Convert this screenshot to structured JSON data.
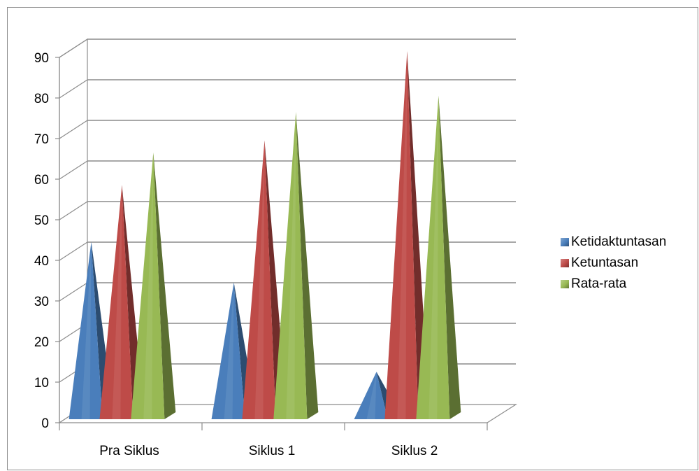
{
  "chart_data": {
    "type": "bar",
    "style": "3d-pyramid",
    "categories": [
      "Pra Siklus",
      "Siklus 1",
      "Siklus 2"
    ],
    "series": [
      {
        "name": "Ketidaktuntasan",
        "values": [
          43,
          33,
          11
        ],
        "color": "#4a7ebb"
      },
      {
        "name": "Ketuntasan",
        "values": [
          57,
          68,
          90
        ],
        "color": "#be4b48"
      },
      {
        "name": "Rata-rata",
        "values": [
          65,
          75,
          79
        ],
        "color": "#98b954"
      }
    ],
    "yticks": [
      0,
      10,
      20,
      30,
      40,
      50,
      60,
      70,
      80,
      90
    ],
    "ylim": [
      0,
      90
    ],
    "grid": true,
    "legend": "right"
  }
}
